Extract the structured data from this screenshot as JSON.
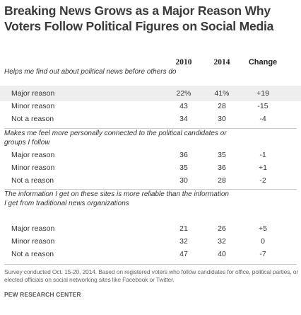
{
  "chart_data": {
    "type": "table",
    "title": "Breaking News Grows as a Major Reason Why Voters Follow Political Figures on Social Media",
    "columns": [
      "2010",
      "2014",
      "Change"
    ],
    "sections": [
      {
        "question": "Helps me find out about political news before others do",
        "rows": [
          {
            "label": "Major reason",
            "v2010": "22%",
            "v2014": "41%",
            "change": "+19"
          },
          {
            "label": "Minor reason",
            "v2010": "43",
            "v2014": "28",
            "change": "-15"
          },
          {
            "label": "Not a reason",
            "v2010": "34",
            "v2014": "30",
            "change": "-4"
          }
        ]
      },
      {
        "question": "Makes me feel more personally connected to the political candidates or groups I follow",
        "rows": [
          {
            "label": "Major reason",
            "v2010": "36",
            "v2014": "35",
            "change": "-1"
          },
          {
            "label": "Minor reason",
            "v2010": "35",
            "v2014": "36",
            "change": "+1"
          },
          {
            "label": "Not a reason",
            "v2010": "30",
            "v2014": "28",
            "change": "-2"
          }
        ]
      },
      {
        "question": "The information I get on these sites is more reliable than the information I get from traditional news organizations",
        "rows": [
          {
            "label": "Major reason",
            "v2010": "21",
            "v2014": "26",
            "change": "+5"
          },
          {
            "label": "Minor reason",
            "v2010": "32",
            "v2014": "32",
            "change": "0"
          },
          {
            "label": "Not a reason",
            "v2010": "47",
            "v2014": "40",
            "change": "-7"
          }
        ]
      }
    ],
    "note": "Survey conducted Oct. 15-20, 2014. Based on registered voters who follow candidates for office, political parties, or elected officials on social networking sites like Facebook or Twitter.",
    "source": "PEW RESEARCH CENTER"
  }
}
